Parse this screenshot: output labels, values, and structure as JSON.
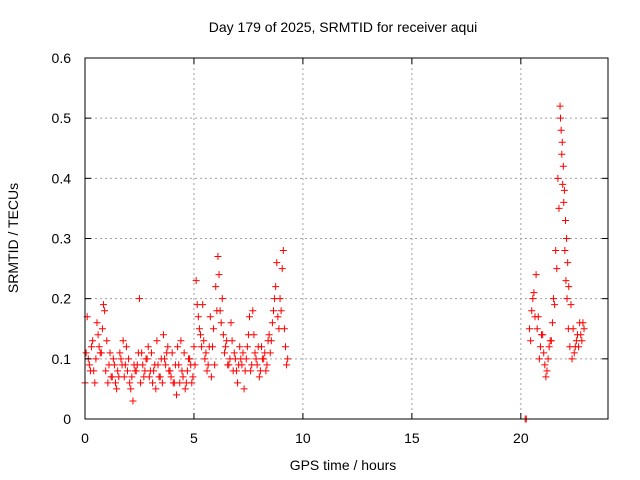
{
  "chart_data": {
    "type": "scatter",
    "title": "Day 179 of 2025, SRMTID for receiver aqui",
    "xlabel": "GPS time / hours",
    "ylabel": "SRMTID / TECUs",
    "xlim": [
      0,
      24
    ],
    "ylim": [
      0,
      0.6
    ],
    "xticks": [
      0,
      5,
      10,
      15,
      20
    ],
    "xtick_labels": [
      "0",
      "5",
      "10",
      "15",
      "20"
    ],
    "yticks": [
      0,
      0.1,
      0.2,
      0.3,
      0.4,
      0.5,
      0.6
    ],
    "ytick_labels": [
      "0",
      "0.1",
      "0.2",
      "0.3",
      "0.4",
      "0.5",
      "0.6"
    ],
    "grid": true,
    "marker": "+",
    "color": "#ff0000",
    "series": [
      {
        "name": "SRMTID",
        "x": [
          0.0,
          0.1,
          0.2,
          0.3,
          0.4,
          0.5,
          0.6,
          0.7,
          0.8,
          0.9,
          1.0,
          1.1,
          1.2,
          1.3,
          1.4,
          1.5,
          1.6,
          1.7,
          1.8,
          1.9,
          2.0,
          2.1,
          2.2,
          2.3,
          2.4,
          2.5,
          2.6,
          2.7,
          2.8,
          2.9,
          3.0,
          3.1,
          3.2,
          3.3,
          3.4,
          3.5,
          3.6,
          3.7,
          3.8,
          3.9,
          4.0,
          4.1,
          4.2,
          4.3,
          4.4,
          4.5,
          4.6,
          4.7,
          4.8,
          4.9,
          5.0,
          5.1,
          5.2,
          5.3,
          5.4,
          5.5,
          5.6,
          5.7,
          5.8,
          5.9,
          6.0,
          6.1,
          6.2,
          6.3,
          6.4,
          6.5,
          6.6,
          6.7,
          6.8,
          6.9,
          7.0,
          7.1,
          7.2,
          7.3,
          7.4,
          7.5,
          7.6,
          7.7,
          7.8,
          7.9,
          8.0,
          8.1,
          8.2,
          8.3,
          8.4,
          8.5,
          8.6,
          8.7,
          8.8,
          8.9,
          9.0,
          9.1,
          9.2,
          9.3,
          0.05,
          0.15,
          0.25,
          0.35,
          0.45,
          0.55,
          0.65,
          0.75,
          0.85,
          0.95,
          1.05,
          1.15,
          1.25,
          1.35,
          1.45,
          1.55,
          1.65,
          1.75,
          1.85,
          1.95,
          2.05,
          2.15,
          2.25,
          2.35,
          2.45,
          2.55,
          2.65,
          2.75,
          2.85,
          2.95,
          3.05,
          3.15,
          3.25,
          3.35,
          3.45,
          3.55,
          3.65,
          3.75,
          3.85,
          3.95,
          4.05,
          4.15,
          4.25,
          4.35,
          4.45,
          4.55,
          4.65,
          4.75,
          4.85,
          4.95,
          5.05,
          5.15,
          5.25,
          5.35,
          5.45,
          5.55,
          5.65,
          5.75,
          5.85,
          5.95,
          6.05,
          6.15,
          6.25,
          6.35,
          6.45,
          6.55,
          6.65,
          6.75,
          6.85,
          6.95,
          7.05,
          7.15,
          7.25,
          7.35,
          7.45,
          7.55,
          7.65,
          7.75,
          7.85,
          7.95,
          8.05,
          8.15,
          8.25,
          8.35,
          8.45,
          8.55,
          8.65,
          8.75,
          8.85,
          8.95,
          9.05,
          9.15,
          9.25,
          20.2,
          20.25,
          20.4,
          20.5,
          20.6,
          20.7,
          20.8,
          20.9,
          21.0,
          21.1,
          21.2,
          21.3,
          21.4,
          21.5,
          21.6,
          21.7,
          21.8,
          21.85,
          21.9,
          21.95,
          22.0,
          22.05,
          22.1,
          22.15,
          22.2,
          22.3,
          22.4,
          22.5,
          22.6,
          22.7,
          22.8,
          22.9,
          20.45,
          20.55,
          20.65,
          20.75,
          20.85,
          20.95,
          21.05,
          21.15,
          21.25,
          21.35,
          21.45,
          21.55,
          21.65,
          21.75,
          21.82,
          21.88,
          21.92,
          21.97,
          22.02,
          22.07,
          22.12,
          22.18,
          22.25,
          22.35,
          22.45,
          22.55,
          22.65,
          22.75,
          22.85
        ],
        "y": [
          0.06,
          0.17,
          0.09,
          0.12,
          0.08,
          0.1,
          0.14,
          0.11,
          0.15,
          0.18,
          0.13,
          0.09,
          0.07,
          0.1,
          0.06,
          0.08,
          0.11,
          0.09,
          0.07,
          0.12,
          0.1,
          0.05,
          0.03,
          0.08,
          0.09,
          0.2,
          0.11,
          0.07,
          0.1,
          0.12,
          0.08,
          0.06,
          0.09,
          0.13,
          0.07,
          0.1,
          0.14,
          0.09,
          0.12,
          0.08,
          0.11,
          0.06,
          0.04,
          0.09,
          0.13,
          0.07,
          0.05,
          0.08,
          0.1,
          0.06,
          0.12,
          0.23,
          0.17,
          0.14,
          0.19,
          0.1,
          0.08,
          0.12,
          0.07,
          0.15,
          0.22,
          0.27,
          0.18,
          0.2,
          0.11,
          0.13,
          0.09,
          0.16,
          0.08,
          0.1,
          0.06,
          0.12,
          0.09,
          0.05,
          0.1,
          0.14,
          0.08,
          0.18,
          0.11,
          0.09,
          0.07,
          0.12,
          0.1,
          0.08,
          0.13,
          0.11,
          0.16,
          0.2,
          0.26,
          0.15,
          0.18,
          0.28,
          0.12,
          0.1,
          0.11,
          0.1,
          0.08,
          0.13,
          0.06,
          0.16,
          0.12,
          0.11,
          0.19,
          0.08,
          0.06,
          0.11,
          0.07,
          0.09,
          0.05,
          0.07,
          0.1,
          0.13,
          0.09,
          0.08,
          0.06,
          0.07,
          0.09,
          0.08,
          0.11,
          0.06,
          0.09,
          0.08,
          0.1,
          0.07,
          0.11,
          0.08,
          0.05,
          0.09,
          0.07,
          0.06,
          0.1,
          0.11,
          0.08,
          0.07,
          0.06,
          0.09,
          0.12,
          0.06,
          0.08,
          0.11,
          0.06,
          0.1,
          0.09,
          0.07,
          0.09,
          0.19,
          0.15,
          0.12,
          0.13,
          0.11,
          0.09,
          0.17,
          0.12,
          0.09,
          0.18,
          0.24,
          0.16,
          0.14,
          0.12,
          0.09,
          0.1,
          0.13,
          0.11,
          0.08,
          0.09,
          0.1,
          0.11,
          0.08,
          0.12,
          0.17,
          0.09,
          0.14,
          0.1,
          0.12,
          0.08,
          0.1,
          0.11,
          0.09,
          0.14,
          0.13,
          0.18,
          0.22,
          0.17,
          0.2,
          0.25,
          0.15,
          0.09,
          0.0,
          0.0,
          0.15,
          0.18,
          0.21,
          0.24,
          0.17,
          0.12,
          0.14,
          0.09,
          0.08,
          0.12,
          0.13,
          0.2,
          0.28,
          0.4,
          0.52,
          0.48,
          0.46,
          0.42,
          0.38,
          0.33,
          0.3,
          0.26,
          0.22,
          0.19,
          0.15,
          0.12,
          0.14,
          0.16,
          0.13,
          0.15,
          0.13,
          0.2,
          0.17,
          0.15,
          0.1,
          0.14,
          0.11,
          0.07,
          0.1,
          0.13,
          0.16,
          0.19,
          0.25,
          0.35,
          0.5,
          0.44,
          0.39,
          0.36,
          0.28,
          0.23,
          0.2,
          0.15,
          0.12,
          0.1,
          0.11,
          0.13,
          0.12,
          0.14,
          0.16
        ]
      }
    ]
  }
}
